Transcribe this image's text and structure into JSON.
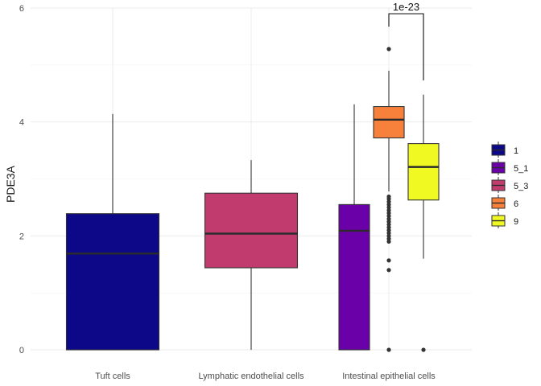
{
  "chart_data": {
    "type": "boxplot",
    "title": "",
    "xlabel": "",
    "ylabel": "PDE3A",
    "ylim": [
      0,
      6
    ],
    "yticks": [
      "0",
      "2",
      "4",
      "6"
    ],
    "categories": [
      "Tuft cells",
      "Lymphatic endothelial cells",
      "Intestinal epithelial cells"
    ],
    "grid": true,
    "legend_position": "right",
    "legend": [
      {
        "label": "1",
        "color": "#0D0887"
      },
      {
        "label": "5_1",
        "color": "#6A00A8"
      },
      {
        "label": "5_3",
        "color": "#C13B6E"
      },
      {
        "label": "6",
        "color": "#F7813A"
      },
      {
        "label": "9",
        "color": "#F0F921"
      }
    ],
    "boxes": [
      {
        "category": "Tuft cells",
        "group": "1",
        "color": "#0D0887",
        "min": 0,
        "q1": 0,
        "median": 1.69,
        "q3": 2.39,
        "max": 4.14,
        "outliers": []
      },
      {
        "category": "Lymphatic endothelial cells",
        "group": "5_3",
        "color": "#C13B6E",
        "min": 0,
        "q1": 1.44,
        "median": 2.04,
        "q3": 2.75,
        "max": 3.33,
        "outliers": []
      },
      {
        "category": "Intestinal epithelial cells",
        "group": "5_1",
        "color": "#6A00A8",
        "min": 0,
        "q1": 0,
        "median": 2.09,
        "q3": 2.55,
        "max": 4.31,
        "outliers": []
      },
      {
        "category": "Intestinal epithelial cells",
        "group": "6",
        "color": "#F7813A",
        "min": 2.78,
        "q1": 3.72,
        "median": 4.04,
        "q3": 4.27,
        "max": 4.9,
        "outliers": [
          5.28,
          2.69,
          2.65,
          2.6,
          2.55,
          2.5,
          2.45,
          2.4,
          2.35,
          2.3,
          2.25,
          2.2,
          2.15,
          2.1,
          2.05,
          2.0,
          1.95,
          1.9,
          1.57,
          1.4,
          0
        ]
      },
      {
        "category": "Intestinal epithelial cells",
        "group": "9",
        "color": "#F0F921",
        "min": 1.6,
        "q1": 2.63,
        "median": 3.21,
        "q3": 3.62,
        "max": 4.48,
        "outliers": [
          0
        ]
      }
    ],
    "annotations": [
      {
        "text": "1e-23",
        "between_groups": [
          "6",
          "9"
        ]
      }
    ]
  }
}
